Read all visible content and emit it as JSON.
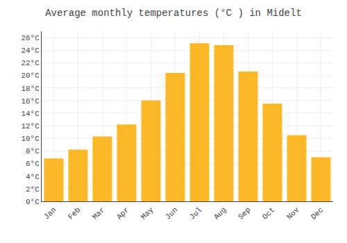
{
  "chart_data": {
    "type": "bar",
    "title": "Average monthly temperatures (°C ) in Midelt",
    "categories": [
      "Jan",
      "Feb",
      "Mar",
      "Apr",
      "May",
      "Jun",
      "Jul",
      "Aug",
      "Sep",
      "Oct",
      "Nov",
      "Dec"
    ],
    "values": [
      6.8,
      8.2,
      10.3,
      12.2,
      16.0,
      20.4,
      25.1,
      24.8,
      20.6,
      15.5,
      10.5,
      7.0
    ],
    "color": "#FDB827",
    "ylim": [
      0,
      27
    ],
    "yticks": [
      {
        "value": 0,
        "label": "0°C"
      },
      {
        "value": 2,
        "label": "2°C"
      },
      {
        "value": 4,
        "label": "4°C"
      },
      {
        "value": 6,
        "label": "6°C"
      },
      {
        "value": 8,
        "label": "8°C"
      },
      {
        "value": 10,
        "label": "10°C"
      },
      {
        "value": 12,
        "label": "12°C"
      },
      {
        "value": 14,
        "label": "14°C"
      },
      {
        "value": 16,
        "label": "16°C"
      },
      {
        "value": 18,
        "label": "18°C"
      },
      {
        "value": 20,
        "label": "20°C"
      },
      {
        "value": 22,
        "label": "22°C"
      },
      {
        "value": 24,
        "label": "24°C"
      },
      {
        "value": 26,
        "label": "26°C"
      }
    ],
    "grid": true
  }
}
